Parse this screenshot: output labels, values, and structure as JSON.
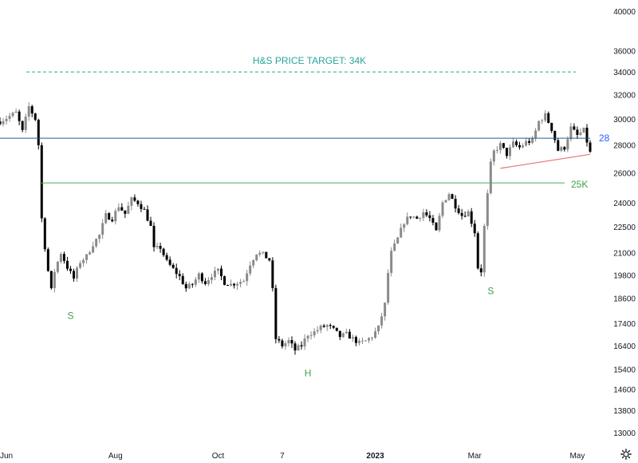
{
  "chart_data": {
    "type": "candlestick",
    "x_tick_labels": [
      {
        "label": "Jun",
        "bold": false
      },
      {
        "label": "Aug",
        "bold": false
      },
      {
        "label": "Oct",
        "bold": false
      },
      {
        "label": "7",
        "bold": false
      },
      {
        "label": "2023",
        "bold": true
      },
      {
        "label": "Mar",
        "bold": false
      },
      {
        "label": "May",
        "bold": false
      }
    ],
    "y_tick_labels": [
      "40000",
      "36000",
      "34000",
      "32000",
      "30000",
      "28000",
      "26000",
      "24000",
      "22500",
      "21000",
      "19800",
      "18600",
      "17400",
      "16400",
      "15400",
      "14600",
      "13800",
      "13000"
    ],
    "y_scale": "log",
    "ylim": [
      13000,
      40000
    ],
    "grid": false,
    "price_path_key_points": [
      {
        "t": 0.0,
        "v": 29800
      },
      {
        "t": 5.0,
        "v": 30500
      },
      {
        "t": 7.0,
        "v": 29000
      },
      {
        "t": 9.0,
        "v": 31000
      },
      {
        "t": 11.0,
        "v": 30000
      },
      {
        "t": 12.5,
        "v": 27000
      },
      {
        "t": 13.0,
        "v": 23000
      },
      {
        "t": 14.5,
        "v": 20500
      },
      {
        "t": 16.0,
        "v": 19000
      },
      {
        "t": 17.0,
        "v": 20000
      },
      {
        "t": 19.0,
        "v": 21000
      },
      {
        "t": 21.0,
        "v": 20200
      },
      {
        "t": 23.0,
        "v": 19600
      },
      {
        "t": 25.0,
        "v": 20500
      },
      {
        "t": 27.0,
        "v": 20800
      },
      {
        "t": 29.0,
        "v": 21500
      },
      {
        "t": 31.0,
        "v": 22000
      },
      {
        "t": 33.0,
        "v": 23200
      },
      {
        "t": 35.0,
        "v": 23000
      },
      {
        "t": 37.0,
        "v": 23800
      },
      {
        "t": 39.0,
        "v": 23300
      },
      {
        "t": 41.0,
        "v": 24200
      },
      {
        "t": 43.0,
        "v": 24000
      },
      {
        "t": 45.0,
        "v": 23500
      },
      {
        "t": 47.0,
        "v": 22500
      },
      {
        "t": 48.0,
        "v": 21200
      },
      {
        "t": 50.0,
        "v": 21300
      },
      {
        "t": 52.0,
        "v": 20500
      },
      {
        "t": 54.0,
        "v": 20100
      },
      {
        "t": 56.0,
        "v": 19700
      },
      {
        "t": 58.0,
        "v": 19100
      },
      {
        "t": 60.0,
        "v": 19300
      },
      {
        "t": 62.0,
        "v": 19800
      },
      {
        "t": 64.0,
        "v": 19400
      },
      {
        "t": 66.0,
        "v": 19800
      },
      {
        "t": 68.0,
        "v": 20000
      },
      {
        "t": 70.0,
        "v": 19400
      },
      {
        "t": 72.0,
        "v": 19300
      },
      {
        "t": 74.0,
        "v": 19400
      },
      {
        "t": 76.0,
        "v": 19500
      },
      {
        "t": 78.0,
        "v": 20400
      },
      {
        "t": 80.0,
        "v": 21000
      },
      {
        "t": 82.0,
        "v": 20900
      },
      {
        "t": 84.0,
        "v": 20600
      },
      {
        "t": 85.0,
        "v": 19000
      },
      {
        "t": 86.0,
        "v": 16700
      },
      {
        "t": 88.0,
        "v": 16400
      },
      {
        "t": 90.0,
        "v": 16600
      },
      {
        "t": 92.0,
        "v": 16200
      },
      {
        "t": 94.0,
        "v": 16400
      },
      {
        "t": 96.0,
        "v": 16900
      },
      {
        "t": 98.0,
        "v": 17000
      },
      {
        "t": 100.0,
        "v": 17200
      },
      {
        "t": 102.0,
        "v": 17300
      },
      {
        "t": 104.0,
        "v": 17100
      },
      {
        "t": 106.0,
        "v": 16800
      },
      {
        "t": 108.0,
        "v": 16900
      },
      {
        "t": 110.0,
        "v": 16700
      },
      {
        "t": 112.0,
        "v": 16500
      },
      {
        "t": 114.0,
        "v": 16600
      },
      {
        "t": 116.0,
        "v": 16800
      },
      {
        "t": 118.0,
        "v": 17200
      },
      {
        "t": 120.0,
        "v": 18300
      },
      {
        "t": 121.0,
        "v": 19900
      },
      {
        "t": 122.0,
        "v": 21000
      },
      {
        "t": 124.0,
        "v": 21800
      },
      {
        "t": 126.0,
        "v": 22800
      },
      {
        "t": 128.0,
        "v": 23200
      },
      {
        "t": 130.0,
        "v": 23000
      },
      {
        "t": 132.0,
        "v": 23400
      },
      {
        "t": 134.0,
        "v": 23000
      },
      {
        "t": 136.0,
        "v": 22200
      },
      {
        "t": 138.0,
        "v": 24000
      },
      {
        "t": 140.0,
        "v": 24600
      },
      {
        "t": 142.0,
        "v": 23800
      },
      {
        "t": 144.0,
        "v": 23200
      },
      {
        "t": 146.0,
        "v": 23400
      },
      {
        "t": 148.0,
        "v": 22200
      },
      {
        "t": 149.0,
        "v": 20200
      },
      {
        "t": 150.0,
        "v": 20000
      },
      {
        "t": 151.0,
        "v": 22500
      },
      {
        "t": 152.0,
        "v": 24500
      },
      {
        "t": 153.0,
        "v": 26600
      },
      {
        "t": 154.0,
        "v": 27500
      },
      {
        "t": 156.0,
        "v": 28000
      },
      {
        "t": 158.0,
        "v": 27300
      },
      {
        "t": 160.0,
        "v": 28100
      },
      {
        "t": 162.0,
        "v": 27800
      },
      {
        "t": 164.0,
        "v": 28200
      },
      {
        "t": 166.0,
        "v": 28300
      },
      {
        "t": 168.0,
        "v": 29800
      },
      {
        "t": 170.0,
        "v": 30300
      },
      {
        "t": 172.0,
        "v": 29200
      },
      {
        "t": 174.0,
        "v": 27600
      },
      {
        "t": 176.0,
        "v": 27800
      },
      {
        "t": 178.0,
        "v": 29300
      },
      {
        "t": 180.0,
        "v": 28700
      },
      {
        "t": 182.0,
        "v": 29100
      },
      {
        "t": 184.0,
        "v": 27400
      }
    ],
    "x_tick_positions_t": [
      2.0,
      36.0,
      68.0,
      88.0,
      117.0,
      148.0,
      180.0
    ],
    "horizontal_lines": [
      {
        "name": "H&S PRICE TARGET: 34K",
        "value": 34000,
        "style": "dashed",
        "color": "#26a69a"
      },
      {
        "name": "28",
        "value": 28500,
        "style": "solid",
        "color": "#2a5a8c"
      },
      {
        "name": "25K",
        "value": 25300,
        "style": "solid",
        "color": "#4caf50"
      }
    ],
    "trendline": {
      "from": {
        "t": 156.0,
        "v": 26300
      },
      "to": {
        "t": 184.0,
        "v": 27300
      },
      "color": "#e57373"
    },
    "annotations": [
      {
        "text": "S",
        "t": 22.0,
        "v": 17600
      },
      {
        "text": "H",
        "t": 96.0,
        "v": 15100
      },
      {
        "text": "S",
        "t": 153.0,
        "v": 18800
      }
    ]
  },
  "labels": {
    "target_line_label": "H&S PRICE TARGET: 34K",
    "level_28_label": "28",
    "level_25k_label": "25K",
    "left_shoulder": "S",
    "head": "H",
    "right_shoulder": "S"
  },
  "colors": {
    "target": "#26a69a",
    "level_28": "#2a5a8c",
    "level_25k": "#43a047",
    "trendline": "#e57373",
    "candle": "#000000",
    "axis_text": "#131722"
  },
  "icons": {
    "settings": "gear-icon"
  }
}
